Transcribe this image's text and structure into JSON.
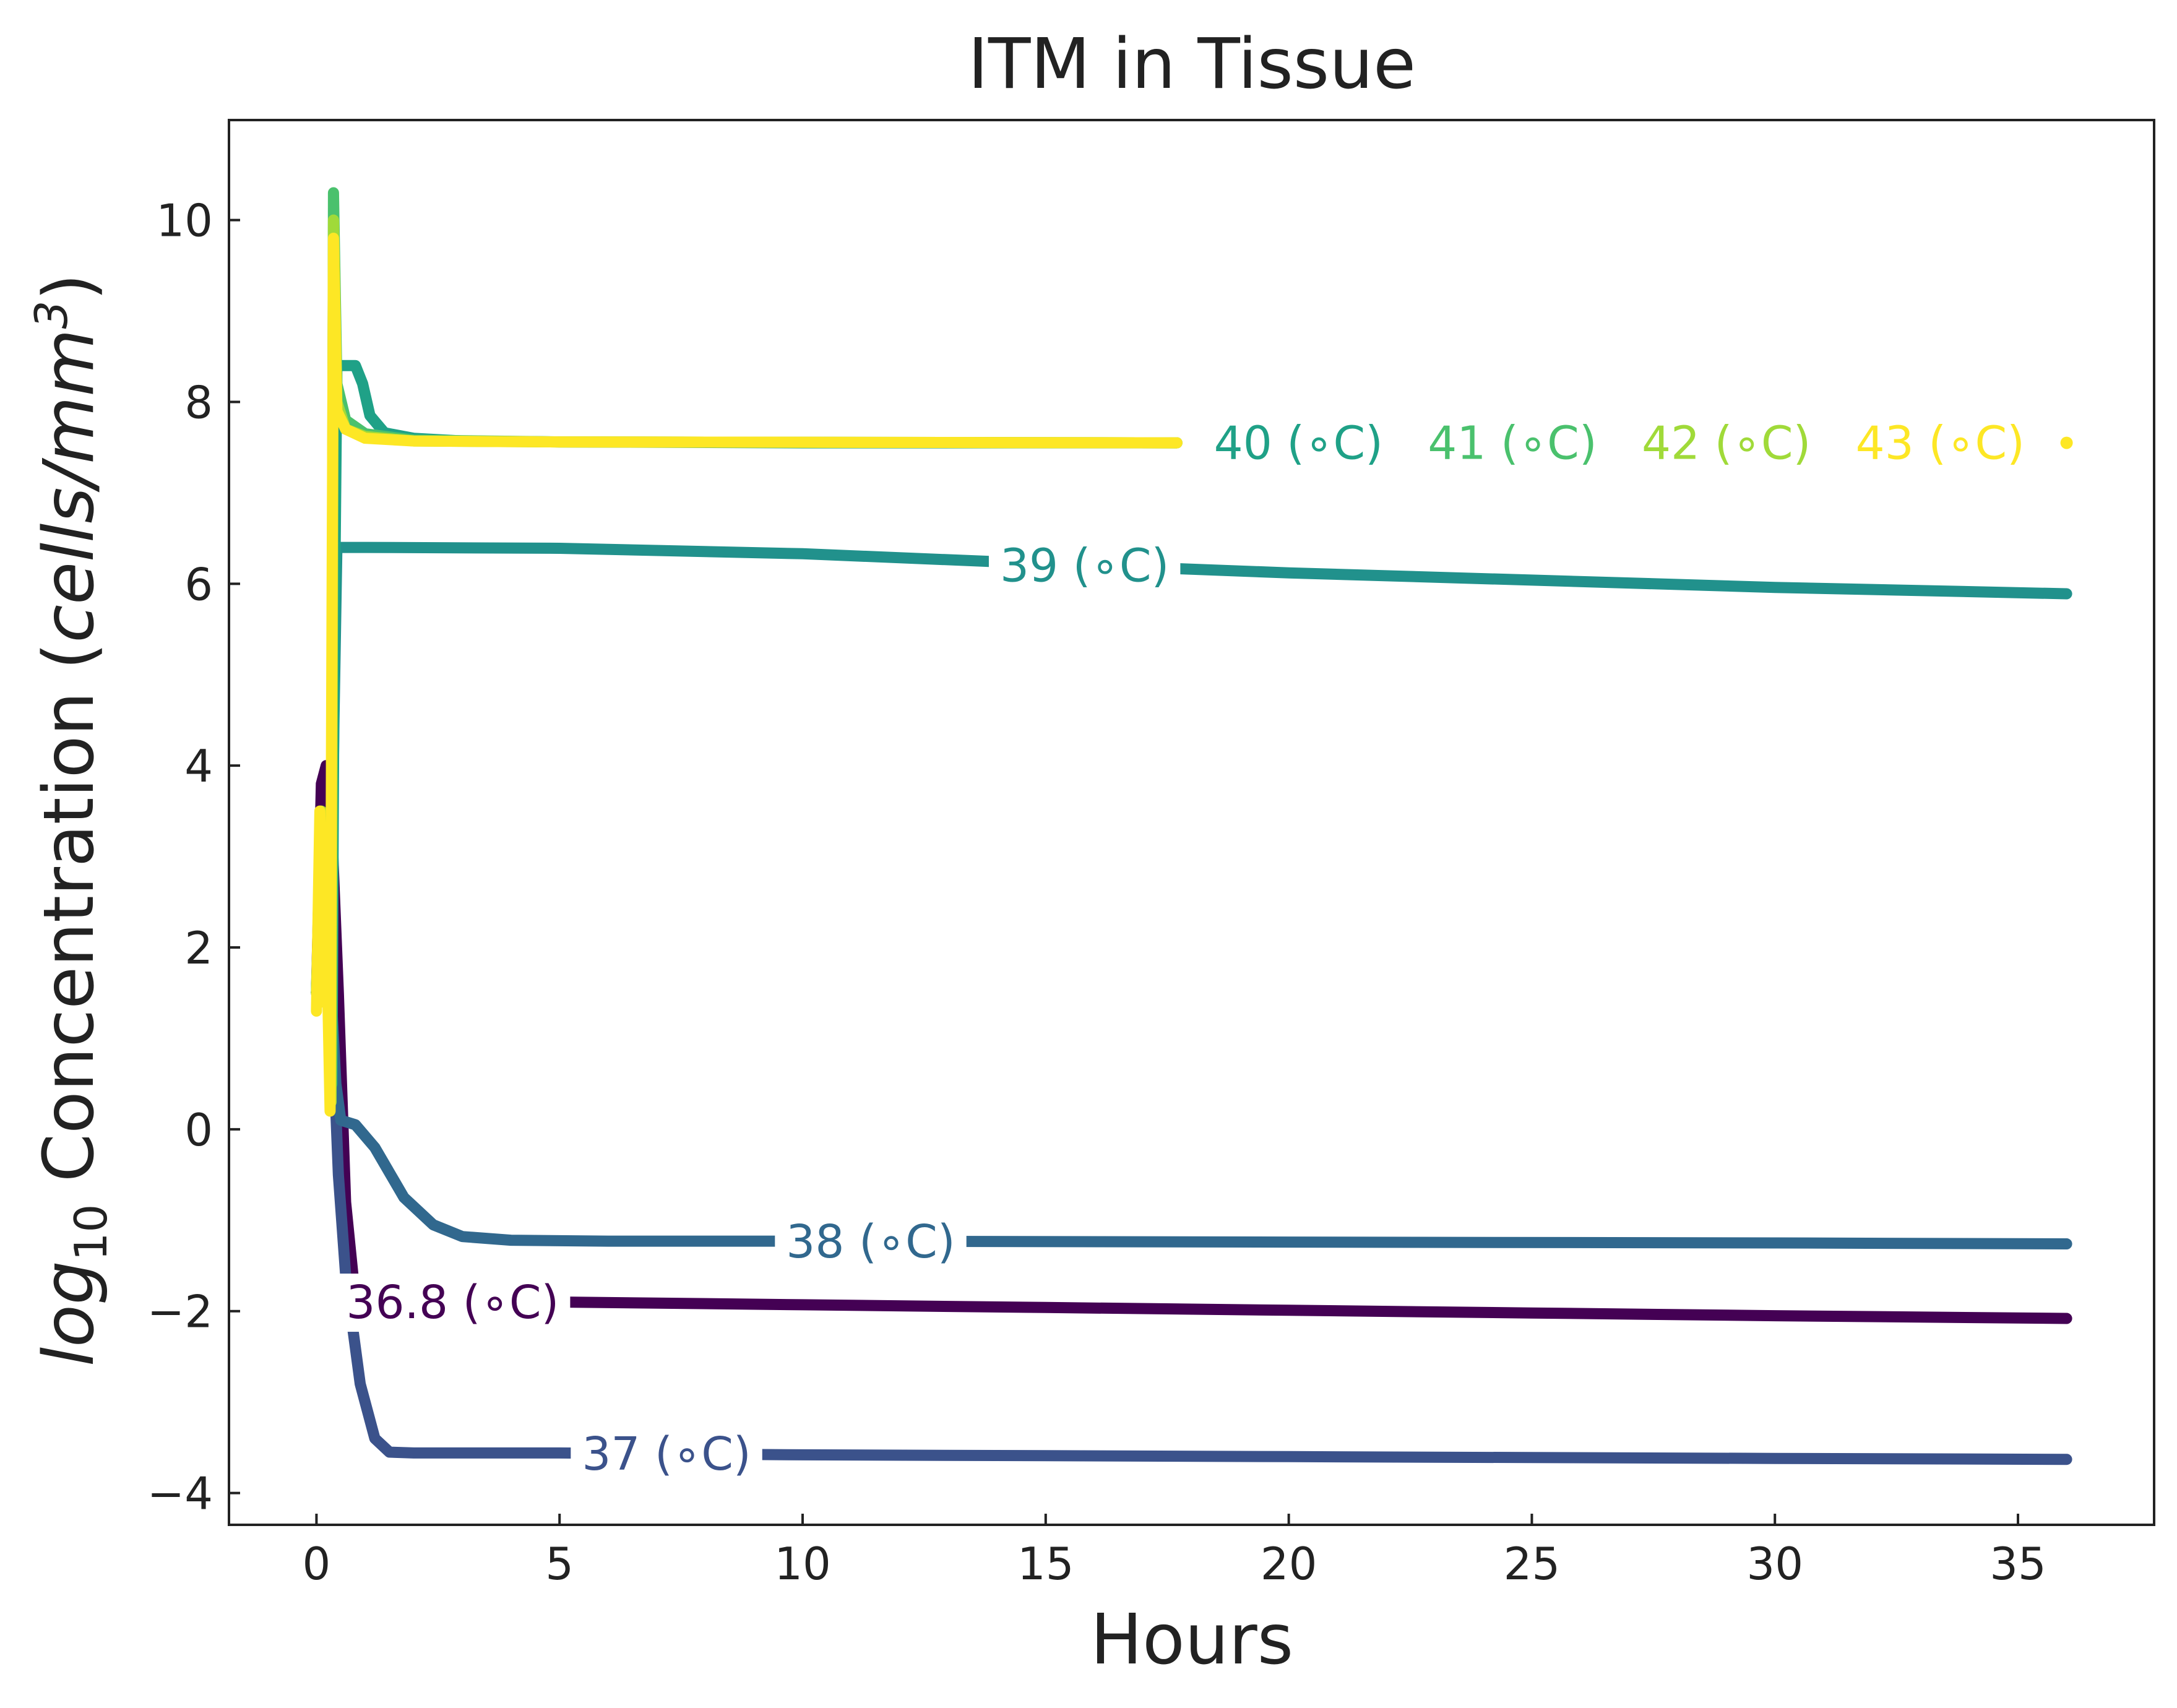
{
  "chart_data": {
    "type": "line",
    "title": "ITM in Tissue",
    "xlabel": "Hours",
    "ylabel": {
      "prefix": "log",
      "subscript": "10",
      "main": " Concentration (",
      "unit": "cells/mm",
      "superscript": "3",
      "suffix": ")"
    },
    "xlim": [
      -1.8,
      37.8
    ],
    "ylim": [
      -4.35,
      11.1
    ],
    "xticks": [
      0,
      5,
      10,
      15,
      20,
      25,
      30,
      35
    ],
    "yticks": [
      -4,
      -2,
      0,
      2,
      4,
      6,
      8,
      10
    ],
    "ytick_labels": [
      "−4",
      "−2",
      "0",
      "2",
      "4",
      "6",
      "8",
      "10"
    ],
    "grid": false,
    "legend": "inline labels",
    "series": [
      {
        "name": "36.8 (∘C)",
        "color": "#440154",
        "label_x": 2.8,
        "points": [
          [
            0,
            1.5
          ],
          [
            0.1,
            3.8
          ],
          [
            0.2,
            4.0
          ],
          [
            0.3,
            3.5
          ],
          [
            0.45,
            1.5
          ],
          [
            0.6,
            -0.8
          ],
          [
            0.75,
            -1.6
          ],
          [
            0.9,
            -1.85
          ],
          [
            1.2,
            -1.9
          ],
          [
            5,
            -1.9
          ],
          [
            10,
            -1.93
          ],
          [
            15,
            -1.96
          ],
          [
            20,
            -1.99
          ],
          [
            25,
            -2.02
          ],
          [
            30,
            -2.05
          ],
          [
            36,
            -2.08
          ]
        ]
      },
      {
        "name": "37 (∘C)",
        "color": "#3b528b",
        "label_x": 7.2,
        "points": [
          [
            0,
            1.5
          ],
          [
            0.1,
            3.0
          ],
          [
            0.2,
            2.8
          ],
          [
            0.3,
            1.5
          ],
          [
            0.45,
            -0.5
          ],
          [
            0.6,
            -1.6
          ],
          [
            0.9,
            -2.8
          ],
          [
            1.2,
            -3.4
          ],
          [
            1.5,
            -3.55
          ],
          [
            2,
            -3.56
          ],
          [
            5,
            -3.56
          ],
          [
            10,
            -3.58
          ],
          [
            15,
            -3.59
          ],
          [
            20,
            -3.6
          ],
          [
            25,
            -3.61
          ],
          [
            30,
            -3.62
          ],
          [
            36,
            -3.63
          ]
        ]
      },
      {
        "name": "38 (∘C)",
        "color": "#31688e",
        "label_x": 11.4,
        "points": [
          [
            0,
            1.5
          ],
          [
            0.1,
            3.0
          ],
          [
            0.2,
            2.6
          ],
          [
            0.3,
            1.5
          ],
          [
            0.4,
            0.5
          ],
          [
            0.5,
            0.1
          ],
          [
            0.8,
            0.05
          ],
          [
            1.2,
            -0.2
          ],
          [
            1.8,
            -0.75
          ],
          [
            2.4,
            -1.05
          ],
          [
            3,
            -1.18
          ],
          [
            4,
            -1.22
          ],
          [
            6,
            -1.23
          ],
          [
            10,
            -1.23
          ],
          [
            20,
            -1.24
          ],
          [
            30,
            -1.25
          ],
          [
            36,
            -1.26
          ]
        ]
      },
      {
        "name": "39 (∘C)",
        "color": "#21918c",
        "label_x": 15.8,
        "points": [
          [
            0,
            1.5
          ],
          [
            0.1,
            3.2
          ],
          [
            0.2,
            2.6
          ],
          [
            0.3,
            2.0
          ],
          [
            0.36,
            4.5
          ],
          [
            0.42,
            6.4
          ],
          [
            1,
            6.4
          ],
          [
            5,
            6.39
          ],
          [
            10,
            6.33
          ],
          [
            15,
            6.22
          ],
          [
            20,
            6.12
          ],
          [
            25,
            6.04
          ],
          [
            30,
            5.96
          ],
          [
            36,
            5.89
          ]
        ]
      },
      {
        "name": "40 (∘C)",
        "color": "#1fa187",
        "label_x": 20.2,
        "points": [
          [
            0,
            1.5
          ],
          [
            0.1,
            3.3
          ],
          [
            0.2,
            2.5
          ],
          [
            0.32,
            0.5
          ],
          [
            0.36,
            5.0
          ],
          [
            0.42,
            8.4
          ],
          [
            0.8,
            8.4
          ],
          [
            0.95,
            8.2
          ],
          [
            1.1,
            7.85
          ],
          [
            1.4,
            7.66
          ],
          [
            2,
            7.6
          ],
          [
            3,
            7.57
          ],
          [
            5,
            7.56
          ],
          [
            10,
            7.55
          ],
          [
            17.7,
            7.55
          ]
        ]
      },
      {
        "name": "41 (∘C)",
        "color": "#4ac16d",
        "label_x": 24.6,
        "points": [
          [
            0,
            1.5
          ],
          [
            0.1,
            3.4
          ],
          [
            0.2,
            2.5
          ],
          [
            0.3,
            0.4
          ],
          [
            0.35,
            10.3
          ],
          [
            0.42,
            8.2
          ],
          [
            0.6,
            7.8
          ],
          [
            1.0,
            7.65
          ],
          [
            2,
            7.58
          ],
          [
            5,
            7.56
          ],
          [
            17.7,
            7.55
          ]
        ]
      },
      {
        "name": "42 (∘C)",
        "color": "#a0da39",
        "label_x": 29.0,
        "points": [
          [
            0,
            1.5
          ],
          [
            0.1,
            3.5
          ],
          [
            0.2,
            2.4
          ],
          [
            0.3,
            0.3
          ],
          [
            0.35,
            10.0
          ],
          [
            0.42,
            8.0
          ],
          [
            0.6,
            7.7
          ],
          [
            1.0,
            7.62
          ],
          [
            2,
            7.57
          ],
          [
            5,
            7.56
          ],
          [
            17.7,
            7.55
          ]
        ]
      },
      {
        "name": "43 (∘C)",
        "color": "#fde725",
        "label_x": 33.4,
        "points": [
          [
            0,
            1.3
          ],
          [
            0.07,
            3.5
          ],
          [
            0.14,
            1.4
          ],
          [
            0.2,
            2.4
          ],
          [
            0.28,
            0.2
          ],
          [
            0.35,
            9.8
          ],
          [
            0.42,
            7.9
          ],
          [
            0.6,
            7.7
          ],
          [
            1.0,
            7.6
          ],
          [
            2,
            7.57
          ],
          [
            5,
            7.56
          ],
          [
            17.7,
            7.55
          ]
        ],
        "end_dot": [
          36,
          7.55
        ]
      }
    ]
  }
}
